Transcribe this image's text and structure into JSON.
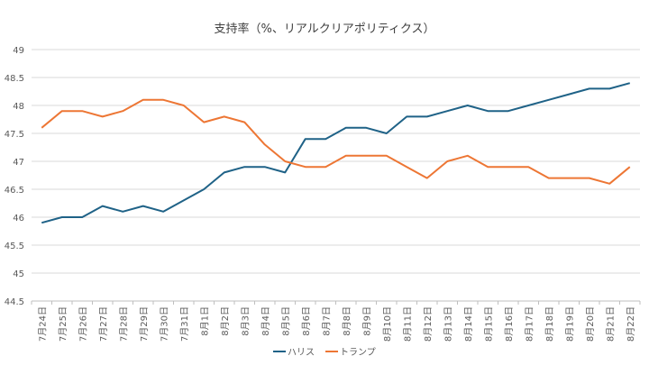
{
  "chart_data": {
    "type": "line",
    "title": "支持率（%、リアルクリアポリティクス）",
    "xlabel": "",
    "ylabel": "",
    "ylim": [
      44.5,
      49
    ],
    "yticks": [
      "44.5",
      "45",
      "45.5",
      "46",
      "46.5",
      "47",
      "47.5",
      "48",
      "48.5",
      "49"
    ],
    "grid": true,
    "legend_position": "bottom",
    "categories": [
      "7月24日",
      "7月25日",
      "7月26日",
      "7月27日",
      "7月28日",
      "7月29日",
      "7月30日",
      "7月31日",
      "8月1日",
      "8月2日",
      "8月3日",
      "8月4日",
      "8月5日",
      "8月6日",
      "8月7日",
      "8月8日",
      "8月9日",
      "8月10日",
      "8月11日",
      "8月12日",
      "8月13日",
      "8月14日",
      "8月15日",
      "8月16日",
      "8月17日",
      "8月18日",
      "8月19日",
      "8月20日",
      "8月21日",
      "8月22日"
    ],
    "series": [
      {
        "name": "ハリス",
        "color": "#1f6287",
        "values": [
          45.9,
          46.0,
          46.0,
          46.2,
          46.1,
          46.2,
          46.1,
          46.3,
          46.5,
          46.8,
          46.9,
          46.9,
          46.8,
          47.4,
          47.4,
          47.6,
          47.6,
          47.5,
          47.8,
          47.8,
          47.9,
          48.0,
          47.9,
          47.9,
          48.0,
          48.1,
          48.2,
          48.3,
          48.3,
          48.4
        ]
      },
      {
        "name": "トランプ",
        "color": "#ed7634",
        "values": [
          47.6,
          47.9,
          47.9,
          47.8,
          47.9,
          48.1,
          48.1,
          48.0,
          47.7,
          47.8,
          47.7,
          47.3,
          47.0,
          46.9,
          46.9,
          47.1,
          47.1,
          47.1,
          46.9,
          46.7,
          47.0,
          47.1,
          46.9,
          46.9,
          46.9,
          46.7,
          46.7,
          46.7,
          46.6,
          46.9
        ]
      }
    ]
  }
}
